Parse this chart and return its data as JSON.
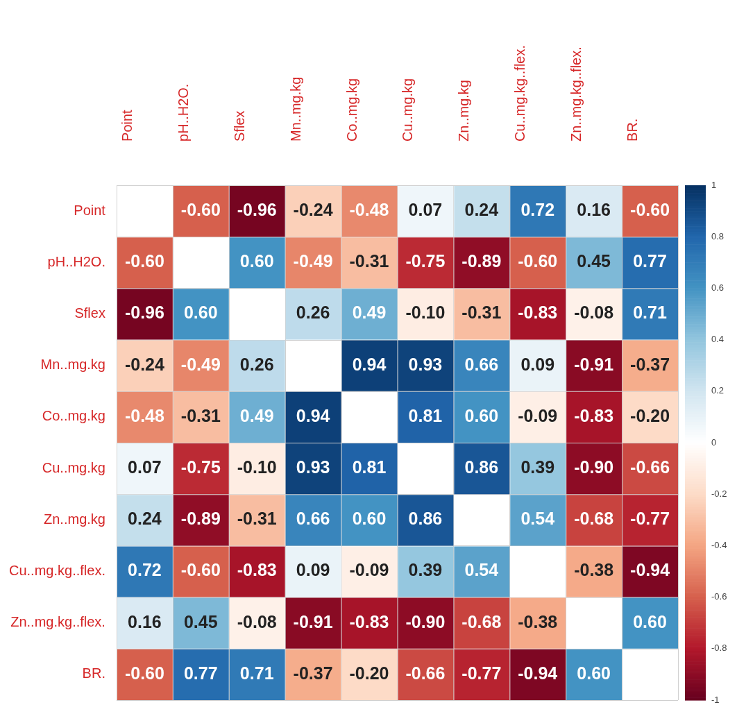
{
  "chart_data": {
    "type": "heatmap",
    "categories": [
      "Point",
      "pH..H2O.",
      "Sflex",
      "Mn..mg.kg",
      "Co..mg.kg",
      "Cu..mg.kg",
      "Zn..mg.kg",
      "Cu..mg.kg..flex.",
      "Zn..mg.kg..flex.",
      "BR."
    ],
    "y_categories": [
      "Point",
      "pH..H2O.",
      "Sflex",
      "Mn..mg.kg",
      "Co..mg.kg",
      "Cu..mg.kg",
      "Zn..mg.kg",
      "Cu..mg.kg..flex.",
      "Zn..mg.kg..flex.",
      "BR."
    ],
    "cells": [
      [
        null,
        -0.6,
        -0.96,
        -0.24,
        -0.48,
        0.07,
        0.24,
        0.72,
        0.16,
        -0.6
      ],
      [
        -0.6,
        null,
        0.6,
        -0.49,
        -0.31,
        -0.75,
        -0.89,
        -0.6,
        0.45,
        0.77
      ],
      [
        -0.96,
        0.6,
        null,
        0.26,
        0.49,
        -0.1,
        -0.31,
        -0.83,
        -0.08,
        0.71
      ],
      [
        -0.24,
        -0.49,
        0.26,
        null,
        0.94,
        0.93,
        0.66,
        0.09,
        -0.91,
        -0.37
      ],
      [
        -0.48,
        -0.31,
        0.49,
        0.94,
        null,
        0.81,
        0.6,
        -0.09,
        -0.83,
        -0.2
      ],
      [
        0.07,
        -0.75,
        -0.1,
        0.93,
        0.81,
        null,
        0.86,
        0.39,
        -0.9,
        -0.66
      ],
      [
        0.24,
        -0.89,
        -0.31,
        0.66,
        0.6,
        0.86,
        null,
        0.54,
        -0.68,
        -0.77
      ],
      [
        0.72,
        -0.6,
        -0.83,
        0.09,
        -0.09,
        0.39,
        0.54,
        null,
        -0.38,
        -0.94
      ],
      [
        0.16,
        0.45,
        -0.08,
        -0.91,
        -0.83,
        -0.9,
        -0.68,
        -0.38,
        null,
        0.6
      ],
      [
        -0.6,
        0.77,
        0.71,
        -0.37,
        -0.2,
        -0.66,
        -0.77,
        -0.94,
        0.6,
        null
      ]
    ],
    "cell_labels": [
      [
        null,
        "-0.60",
        "-0.96",
        "-0.24",
        "-0.48",
        "0.07",
        "0.24",
        "0.72",
        "0.16",
        "-0.60"
      ],
      [
        "-0.60",
        null,
        "0.60",
        "-0.49",
        "-0.31",
        "-0.75",
        "-0.89",
        "-0.60",
        "0.45",
        "0.77"
      ],
      [
        "-0.96",
        "0.60",
        null,
        "0.26",
        "0.49",
        "-0.10",
        "-0.31",
        "-0.83",
        "-0.08",
        "0.71"
      ],
      [
        "-0.24",
        "-0.49",
        "0.26",
        null,
        "0.94",
        "0.93",
        "0.66",
        "0.09",
        "-0.91",
        "-0.37"
      ],
      [
        "-0.48",
        "-0.31",
        "0.49",
        "0.94",
        null,
        "0.81",
        "0.60",
        "-0.09",
        "-0.83",
        "-0.20"
      ],
      [
        "0.07",
        "-0.75",
        "-0.10",
        "0.93",
        "0.81",
        null,
        "0.86",
        "0.39",
        "-0.90",
        "-0.66"
      ],
      [
        "0.24",
        "-0.89",
        "-0.31",
        "0.66",
        "0.60",
        "0.86",
        null,
        "0.54",
        "-0.68",
        "-0.77"
      ],
      [
        "0.72",
        "-0.60",
        "-0.83",
        "0.09",
        "-0.09",
        "0.39",
        "0.54",
        null,
        "-0.38",
        "-0.94"
      ],
      [
        "0.16",
        "0.45",
        "-0.08",
        "-0.91",
        "-0.83",
        "-0.90",
        "-0.68",
        "-0.38",
        null,
        "0.60"
      ],
      [
        "-0.60",
        "0.77",
        "0.71",
        "-0.37",
        "-0.20",
        "-0.66",
        "-0.77",
        "-0.94",
        "0.60",
        null
      ]
    ],
    "clim": [
      -1,
      1
    ],
    "cticks": [
      -1,
      -0.8,
      -0.6,
      -0.4,
      -0.2,
      0,
      0.2,
      0.4,
      0.6,
      0.8,
      1
    ]
  }
}
